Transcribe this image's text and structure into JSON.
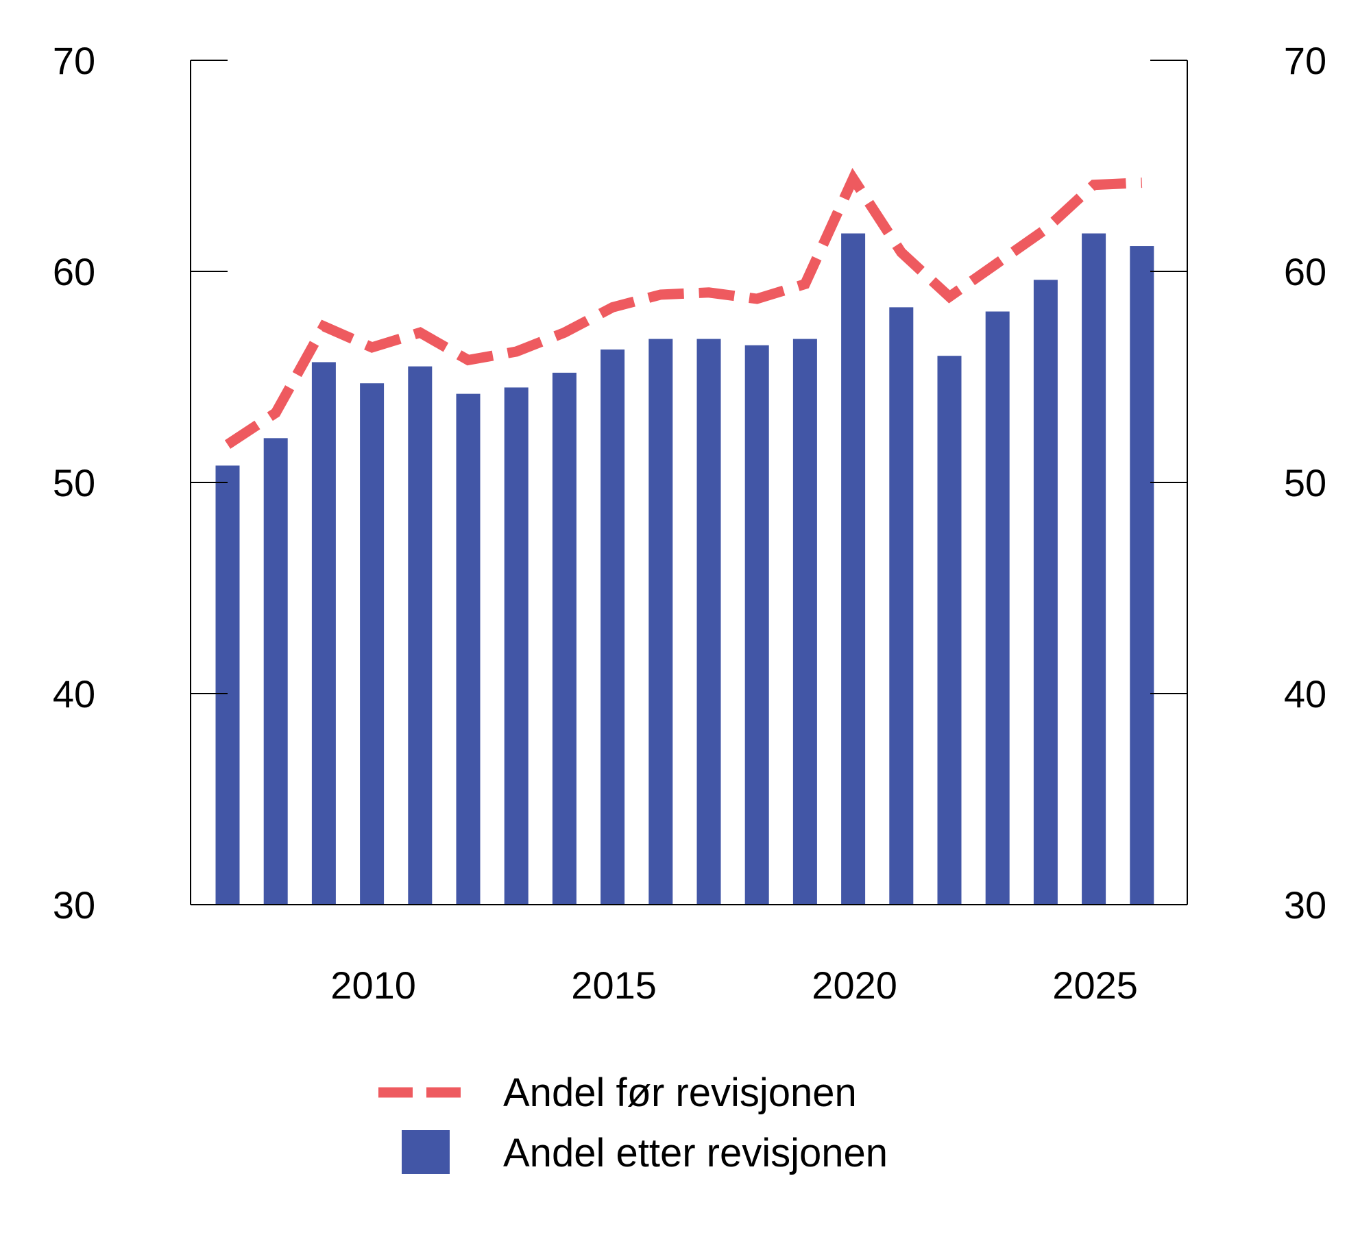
{
  "chart_data": {
    "type": "bar",
    "title": "",
    "xlabel": "",
    "ylabel": "",
    "x": [
      2007,
      2008,
      2009,
      2010,
      2011,
      2012,
      2013,
      2014,
      2015,
      2016,
      2017,
      2018,
      2019,
      2020,
      2021,
      2022,
      2023,
      2024,
      2025,
      2026
    ],
    "x_ticks": [
      "2010",
      "2015",
      "2020",
      "2025"
    ],
    "ylim": [
      30,
      70
    ],
    "y_ticks": [
      "30",
      "40",
      "50",
      "60",
      "70"
    ],
    "y_ticks_right": [
      "30",
      "40",
      "50",
      "60",
      "70"
    ],
    "grid": false,
    "legend_position": "bottom-center",
    "series": [
      {
        "name": "Andel før revisjonen",
        "type": "line",
        "style": "dashed",
        "color": "#EE5A5F",
        "values": [
          51.8,
          53.3,
          57.4,
          56.4,
          57.1,
          55.8,
          56.2,
          57.1,
          58.3,
          58.9,
          59.0,
          58.7,
          59.4,
          64.4,
          60.9,
          58.8,
          60.4,
          62.0,
          64.1,
          64.2
        ]
      },
      {
        "name": "Andel etter revisjonen",
        "type": "bar",
        "color": "#4256A6",
        "values": [
          50.8,
          52.1,
          55.7,
          54.7,
          55.5,
          54.2,
          54.5,
          55.2,
          56.3,
          56.8,
          56.8,
          56.5,
          56.8,
          61.8,
          58.3,
          56.0,
          58.1,
          59.6,
          61.8,
          61.2
        ]
      }
    ],
    "legend": {
      "line_label": "Andel før revisjonen",
      "bar_label": "Andel etter revisjonen"
    }
  }
}
